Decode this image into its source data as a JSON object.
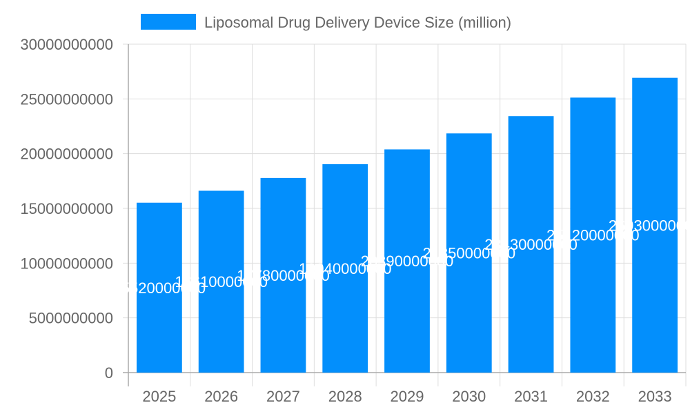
{
  "chart_data": {
    "type": "bar",
    "categories": [
      "2025",
      "2026",
      "2027",
      "2028",
      "2029",
      "2030",
      "2031",
      "2032",
      "2033"
    ],
    "series": [
      {
        "name": "Liposomal Drug Delivery Device Size (million)",
        "values": [
          15520000000,
          16610000000,
          17780000000,
          19040000000,
          20390000000,
          21850000000,
          23430000000,
          25120000000,
          26930000000
        ]
      }
    ],
    "ylim": [
      0,
      30000000000
    ],
    "yticks": [
      0,
      5000000000,
      10000000000,
      15000000000,
      20000000000,
      25000000000,
      30000000000
    ],
    "grid": true,
    "legend": "top",
    "bar_color": "#038ffc",
    "data_labels": true
  }
}
